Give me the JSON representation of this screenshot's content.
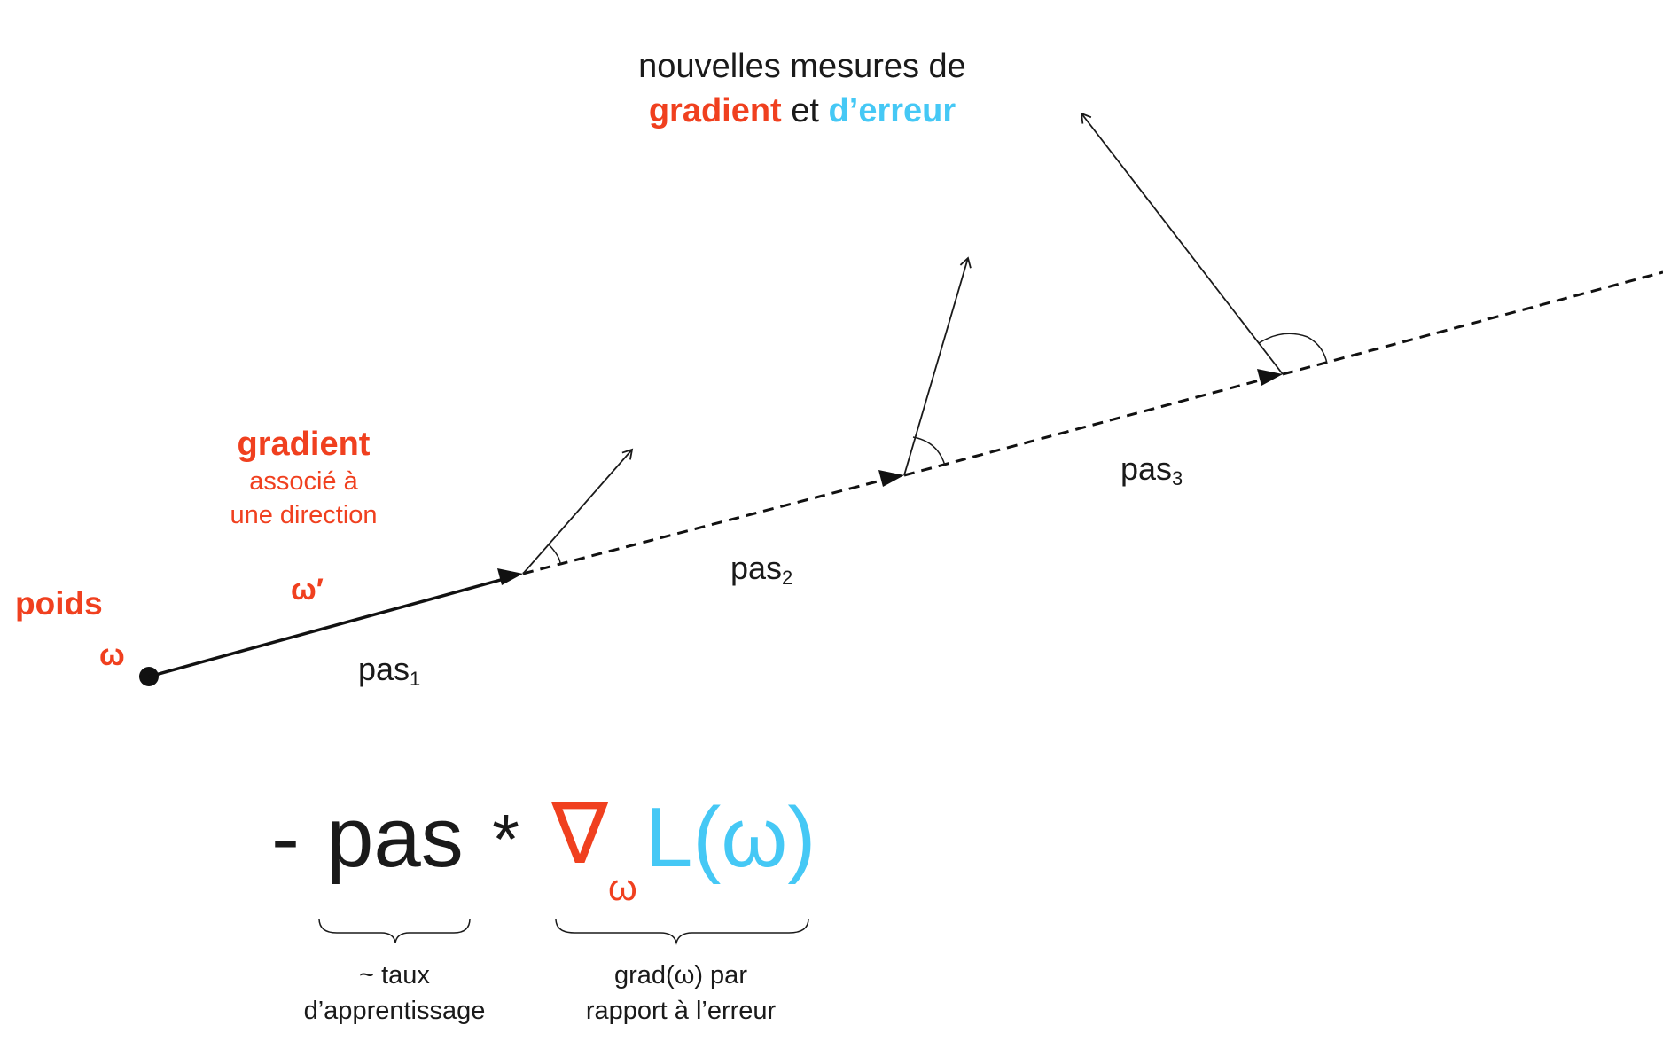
{
  "header": {
    "line1": "nouvelles mesures de",
    "gradient_word": "gradient",
    "et_word": "et",
    "erreur_word": "d’erreur"
  },
  "weights": {
    "poids_label": "poids",
    "omega_label": "ω",
    "omega_prime_label": "ω′"
  },
  "gradient_note": {
    "title": "gradient",
    "line1": "associé à",
    "line2": "une direction"
  },
  "steps": [
    {
      "base": "pas",
      "sub": "1"
    },
    {
      "base": "pas",
      "sub": "2"
    },
    {
      "base": "pas",
      "sub": "3"
    }
  ],
  "formula": {
    "minus": "-",
    "pas": "pas",
    "times": "*",
    "nabla": "∇",
    "nabla_sub": "ω",
    "loss": "L(ω)"
  },
  "braces": {
    "left_line1": "~ taux",
    "left_line2": "d’apprentissage",
    "right_line1": "grad(ω) par",
    "right_line2": "rapport à l’erreur"
  },
  "colors": {
    "gradient_red": "#f0401f",
    "error_blue": "#45c8f5",
    "ink": "#1a1a1a"
  }
}
